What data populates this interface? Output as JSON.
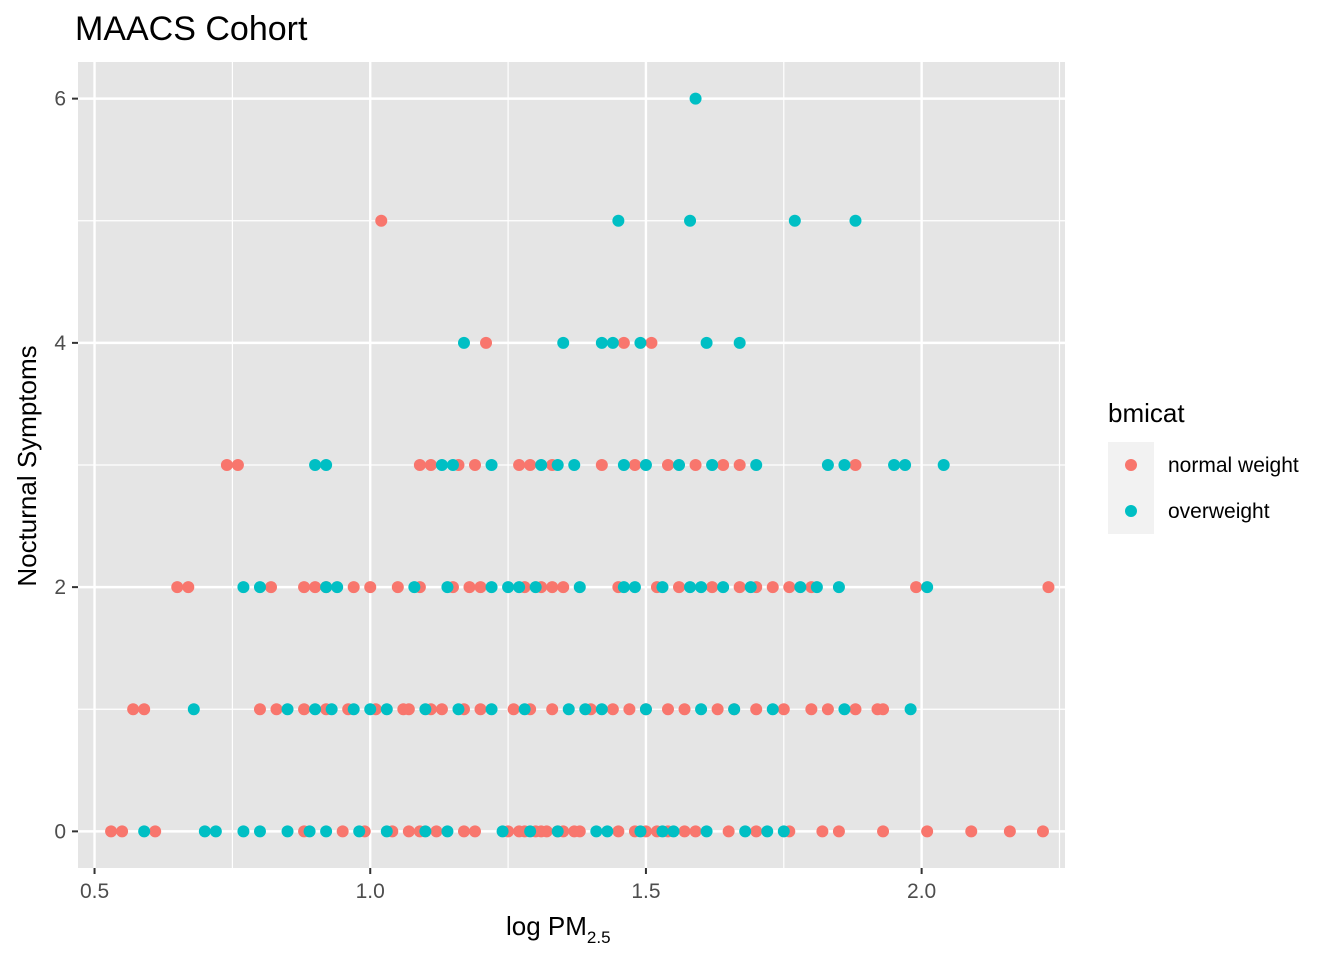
{
  "chart_data": {
    "type": "scatter",
    "title": "MAACS Cohort",
    "xlabel": {
      "main": "log PM",
      "sub": "2.5"
    },
    "ylabel": "Nocturnal Symptoms",
    "xlim": [
      0.47,
      2.26
    ],
    "ylim": [
      -0.3,
      6.3
    ],
    "x_ticks": [
      0.5,
      1.0,
      1.5,
      2.0
    ],
    "x_tick_labels": [
      "0.5",
      "1.0",
      "1.5",
      "2.0"
    ],
    "y_ticks": [
      0,
      2,
      4,
      6
    ],
    "y_tick_labels": [
      "0",
      "2",
      "4",
      "6"
    ],
    "grid": true,
    "legend": {
      "title": "bmicat",
      "position": "right"
    },
    "series": [
      {
        "name": "normal weight",
        "color": "#F8766D",
        "points": [
          [
            0.53,
            0
          ],
          [
            0.55,
            0
          ],
          [
            0.61,
            0
          ],
          [
            0.88,
            0
          ],
          [
            0.95,
            0
          ],
          [
            0.99,
            0
          ],
          [
            1.04,
            0
          ],
          [
            1.07,
            0
          ],
          [
            1.09,
            0
          ],
          [
            1.12,
            0
          ],
          [
            1.17,
            0
          ],
          [
            1.19,
            0
          ],
          [
            1.25,
            0
          ],
          [
            1.27,
            0
          ],
          [
            1.28,
            0
          ],
          [
            1.3,
            0
          ],
          [
            1.31,
            0
          ],
          [
            1.32,
            0
          ],
          [
            1.34,
            0
          ],
          [
            1.35,
            0
          ],
          [
            1.37,
            0
          ],
          [
            1.38,
            0
          ],
          [
            1.45,
            0
          ],
          [
            1.48,
            0
          ],
          [
            1.5,
            0
          ],
          [
            1.52,
            0
          ],
          [
            1.54,
            0
          ],
          [
            1.57,
            0
          ],
          [
            1.59,
            0
          ],
          [
            1.65,
            0
          ],
          [
            1.7,
            0
          ],
          [
            1.76,
            0
          ],
          [
            1.82,
            0
          ],
          [
            1.85,
            0
          ],
          [
            1.93,
            0
          ],
          [
            2.01,
            0
          ],
          [
            2.09,
            0
          ],
          [
            2.16,
            0
          ],
          [
            2.22,
            0
          ],
          [
            0.57,
            1
          ],
          [
            0.59,
            1
          ],
          [
            0.8,
            1
          ],
          [
            0.83,
            1
          ],
          [
            0.88,
            1
          ],
          [
            0.92,
            1
          ],
          [
            0.96,
            1
          ],
          [
            1.01,
            1
          ],
          [
            1.06,
            1
          ],
          [
            1.07,
            1
          ],
          [
            1.11,
            1
          ],
          [
            1.13,
            1
          ],
          [
            1.17,
            1
          ],
          [
            1.2,
            1
          ],
          [
            1.26,
            1
          ],
          [
            1.29,
            1
          ],
          [
            1.33,
            1
          ],
          [
            1.4,
            1
          ],
          [
            1.44,
            1
          ],
          [
            1.47,
            1
          ],
          [
            1.5,
            1
          ],
          [
            1.54,
            1
          ],
          [
            1.57,
            1
          ],
          [
            1.63,
            1
          ],
          [
            1.66,
            1
          ],
          [
            1.7,
            1
          ],
          [
            1.75,
            1
          ],
          [
            1.8,
            1
          ],
          [
            1.83,
            1
          ],
          [
            1.88,
            1
          ],
          [
            1.92,
            1
          ],
          [
            1.93,
            1
          ],
          [
            0.65,
            2
          ],
          [
            0.67,
            2
          ],
          [
            0.82,
            2
          ],
          [
            0.88,
            2
          ],
          [
            0.9,
            2
          ],
          [
            0.92,
            2
          ],
          [
            0.97,
            2
          ],
          [
            1.0,
            2
          ],
          [
            1.05,
            2
          ],
          [
            1.09,
            2
          ],
          [
            1.15,
            2
          ],
          [
            1.18,
            2
          ],
          [
            1.2,
            2
          ],
          [
            1.28,
            2
          ],
          [
            1.31,
            2
          ],
          [
            1.33,
            2
          ],
          [
            1.35,
            2
          ],
          [
            1.45,
            2
          ],
          [
            1.52,
            2
          ],
          [
            1.56,
            2
          ],
          [
            1.62,
            2
          ],
          [
            1.67,
            2
          ],
          [
            1.7,
            2
          ],
          [
            1.73,
            2
          ],
          [
            1.76,
            2
          ],
          [
            1.8,
            2
          ],
          [
            1.99,
            2
          ],
          [
            2.23,
            2
          ],
          [
            0.74,
            3
          ],
          [
            0.76,
            3
          ],
          [
            1.09,
            3
          ],
          [
            1.11,
            3
          ],
          [
            1.16,
            3
          ],
          [
            1.19,
            3
          ],
          [
            1.27,
            3
          ],
          [
            1.29,
            3
          ],
          [
            1.33,
            3
          ],
          [
            1.42,
            3
          ],
          [
            1.48,
            3
          ],
          [
            1.54,
            3
          ],
          [
            1.59,
            3
          ],
          [
            1.64,
            3
          ],
          [
            1.67,
            3
          ],
          [
            1.88,
            3
          ],
          [
            1.21,
            4
          ],
          [
            1.46,
            4
          ],
          [
            1.51,
            4
          ],
          [
            1.02,
            5
          ]
        ]
      },
      {
        "name": "overweight",
        "color": "#00BFC4",
        "points": [
          [
            0.59,
            0
          ],
          [
            0.7,
            0
          ],
          [
            0.72,
            0
          ],
          [
            0.77,
            0
          ],
          [
            0.8,
            0
          ],
          [
            0.85,
            0
          ],
          [
            0.89,
            0
          ],
          [
            0.92,
            0
          ],
          [
            0.98,
            0
          ],
          [
            1.03,
            0
          ],
          [
            1.1,
            0
          ],
          [
            1.14,
            0
          ],
          [
            1.24,
            0
          ],
          [
            1.29,
            0
          ],
          [
            1.34,
            0
          ],
          [
            1.41,
            0
          ],
          [
            1.43,
            0
          ],
          [
            1.49,
            0
          ],
          [
            1.53,
            0
          ],
          [
            1.55,
            0
          ],
          [
            1.61,
            0
          ],
          [
            1.68,
            0
          ],
          [
            1.72,
            0
          ],
          [
            1.75,
            0
          ],
          [
            0.68,
            1
          ],
          [
            0.85,
            1
          ],
          [
            0.9,
            1
          ],
          [
            0.93,
            1
          ],
          [
            0.97,
            1
          ],
          [
            1.0,
            1
          ],
          [
            1.03,
            1
          ],
          [
            1.1,
            1
          ],
          [
            1.16,
            1
          ],
          [
            1.22,
            1
          ],
          [
            1.28,
            1
          ],
          [
            1.36,
            1
          ],
          [
            1.39,
            1
          ],
          [
            1.42,
            1
          ],
          [
            1.5,
            1
          ],
          [
            1.6,
            1
          ],
          [
            1.66,
            1
          ],
          [
            1.73,
            1
          ],
          [
            1.86,
            1
          ],
          [
            1.98,
            1
          ],
          [
            0.77,
            2
          ],
          [
            0.8,
            2
          ],
          [
            0.92,
            2
          ],
          [
            0.94,
            2
          ],
          [
            1.08,
            2
          ],
          [
            1.14,
            2
          ],
          [
            1.22,
            2
          ],
          [
            1.25,
            2
          ],
          [
            1.27,
            2
          ],
          [
            1.3,
            2
          ],
          [
            1.38,
            2
          ],
          [
            1.46,
            2
          ],
          [
            1.48,
            2
          ],
          [
            1.53,
            2
          ],
          [
            1.58,
            2
          ],
          [
            1.6,
            2
          ],
          [
            1.64,
            2
          ],
          [
            1.69,
            2
          ],
          [
            1.78,
            2
          ],
          [
            1.81,
            2
          ],
          [
            1.85,
            2
          ],
          [
            2.01,
            2
          ],
          [
            0.9,
            3
          ],
          [
            0.92,
            3
          ],
          [
            1.13,
            3
          ],
          [
            1.15,
            3
          ],
          [
            1.22,
            3
          ],
          [
            1.31,
            3
          ],
          [
            1.34,
            3
          ],
          [
            1.37,
            3
          ],
          [
            1.46,
            3
          ],
          [
            1.5,
            3
          ],
          [
            1.56,
            3
          ],
          [
            1.62,
            3
          ],
          [
            1.7,
            3
          ],
          [
            1.83,
            3
          ],
          [
            1.86,
            3
          ],
          [
            1.95,
            3
          ],
          [
            1.97,
            3
          ],
          [
            2.04,
            3
          ],
          [
            1.17,
            4
          ],
          [
            1.35,
            4
          ],
          [
            1.42,
            4
          ],
          [
            1.44,
            4
          ],
          [
            1.49,
            4
          ],
          [
            1.61,
            4
          ],
          [
            1.67,
            4
          ],
          [
            1.45,
            5
          ],
          [
            1.58,
            5
          ],
          [
            1.77,
            5
          ],
          [
            1.88,
            5
          ],
          [
            1.59,
            6
          ]
        ]
      }
    ]
  }
}
